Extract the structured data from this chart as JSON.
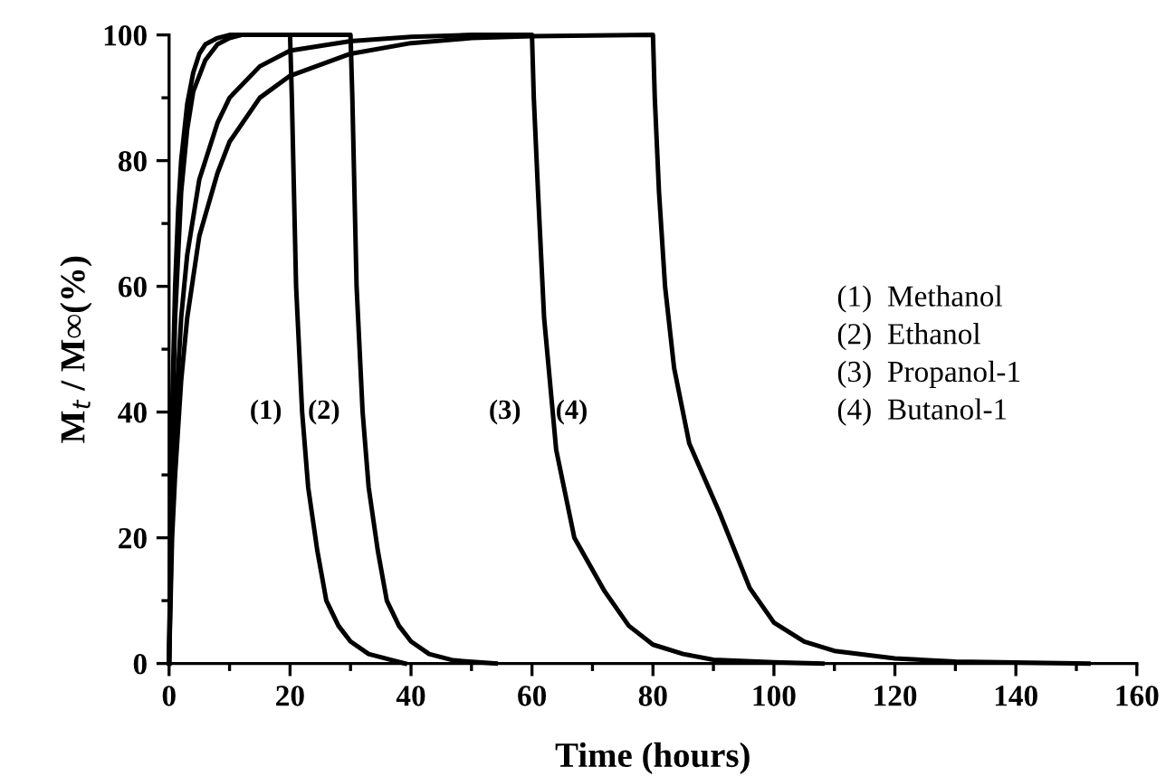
{
  "chart_data": {
    "type": "line",
    "xlabel": "Time (hours)",
    "ylabel": "M$_{t}$ / M∞(%)",
    "xlim": [
      0,
      160
    ],
    "ylim": [
      0,
      100
    ],
    "xticks": [
      0,
      20,
      40,
      60,
      80,
      100,
      120,
      140,
      160
    ],
    "yticks": [
      0,
      20,
      40,
      60,
      80,
      100
    ],
    "grid": false,
    "legend": false,
    "marker": "none",
    "line_style": "solid",
    "series": [
      {
        "color": "#000000",
        "x": [
          0,
          0.5,
          1,
          1.5,
          2,
          3,
          4,
          5,
          6,
          8,
          10,
          20,
          20.3,
          21,
          22,
          23,
          24.5,
          26,
          28,
          30,
          33,
          37,
          39
        ],
        "values": [
          0,
          40,
          60,
          72,
          80,
          89,
          94,
          97,
          98.5,
          99.5,
          100,
          100,
          90,
          60,
          40,
          28,
          18,
          10,
          6,
          3.5,
          1.5,
          0.5,
          0
        ]
      },
      {
        "color": "#000000",
        "x": [
          0,
          0.5,
          1,
          2,
          3,
          4,
          6,
          8,
          10,
          12,
          30,
          30.3,
          31,
          32,
          33,
          34.5,
          36,
          38,
          40,
          43,
          47,
          54
        ],
        "values": [
          0,
          35,
          55,
          75,
          85,
          91,
          96,
          98.5,
          99.5,
          100,
          100,
          90,
          60,
          40,
          28,
          18,
          10,
          6,
          3.5,
          1.5,
          0.5,
          0
        ]
      },
      {
        "color": "#000000",
        "x": [
          0,
          0.5,
          1,
          2,
          3,
          5,
          8,
          10,
          15,
          20,
          30,
          40,
          50,
          60,
          60.3,
          61,
          62,
          64,
          67,
          72,
          76,
          80,
          85,
          90,
          100,
          108
        ],
        "values": [
          0,
          25,
          38,
          55,
          65,
          77,
          86,
          90,
          95,
          97.5,
          99,
          99.7,
          100,
          100,
          90,
          75,
          55,
          34,
          20,
          11.5,
          6,
          3,
          1.5,
          0.6,
          0.2,
          0
        ]
      },
      {
        "color": "#000000",
        "x": [
          0,
          0.5,
          1,
          2,
          3,
          5,
          8,
          10,
          15,
          20,
          30,
          40,
          50,
          60,
          80,
          80.3,
          81,
          82,
          83.5,
          86,
          91,
          96,
          100,
          105,
          110,
          120,
          130,
          152
        ],
        "values": [
          0,
          20,
          30,
          45,
          55,
          68,
          78,
          83,
          90,
          93.5,
          97,
          98.7,
          99.5,
          99.8,
          100,
          90,
          75,
          60,
          47,
          35,
          24,
          12,
          6.5,
          3.5,
          2,
          0.8,
          0.3,
          0
        ]
      }
    ],
    "annotations": [
      "(1)",
      "(2)",
      "(3)",
      "(4)",
      "(1)  Methanol",
      "(2)  Ethanol",
      "(3)  Propanol-1",
      "(4)  Butanol-1"
    ]
  }
}
